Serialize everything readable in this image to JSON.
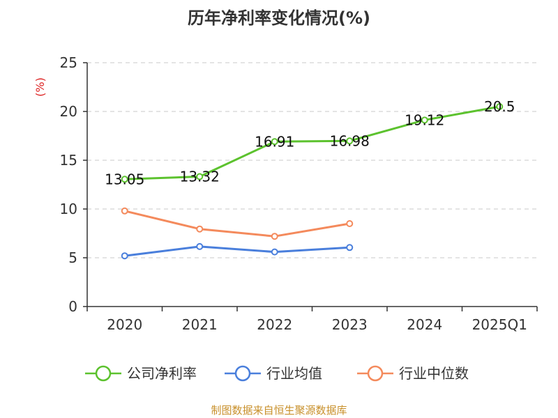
{
  "chart_data": {
    "type": "line",
    "title": "历年净利率变化情况(%)",
    "ylabel": "(%)",
    "xlabel": "",
    "categories": [
      "2020",
      "2021",
      "2022",
      "2023",
      "2024",
      "2025Q1"
    ],
    "ylim": [
      0,
      25
    ],
    "yticks": [
      0,
      5,
      10,
      15,
      20,
      25
    ],
    "grid": true,
    "legend_position": "bottom",
    "series": [
      {
        "name": "公司净利率",
        "color": "#5cc22e",
        "show_labels": true,
        "values": [
          13.05,
          13.32,
          16.91,
          16.98,
          19.12,
          20.5
        ],
        "labels": [
          "13.05",
          "13.32",
          "16.91",
          "16.98",
          "19.12",
          "20.5"
        ]
      },
      {
        "name": "行业均值",
        "color": "#4a7fdc",
        "show_labels": false,
        "values": [
          5.2,
          6.15,
          5.6,
          6.05,
          null,
          null
        ]
      },
      {
        "name": "行业中位数",
        "color": "#f48a5c",
        "show_labels": false,
        "values": [
          9.8,
          7.95,
          7.2,
          8.5,
          null,
          null
        ]
      }
    ]
  },
  "source_note": "制图数据来自恒生聚源数据库"
}
